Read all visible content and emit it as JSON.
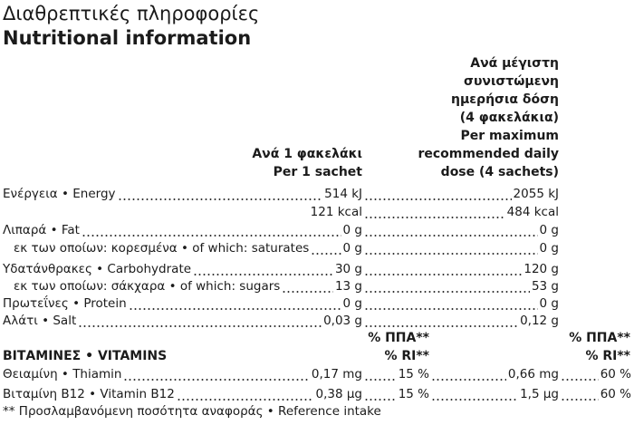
{
  "header": {
    "title_el": "Διαθρεπτικές πληροφορίες",
    "title_en": "Nutritional information"
  },
  "columns": {
    "per_sachet": [
      "Ανά 1 φακελάκι",
      "Per 1 sachet"
    ],
    "per_max": [
      "Ανά μέγιστη",
      "συνιστώμενη",
      "ημερήσια δόση",
      "(4 φακελάκια)",
      "Per maximum",
      "recommended daily",
      "dose (4 sachets)"
    ]
  },
  "rows": [
    {
      "label": "Ενέργεια • Energy",
      "per_sachet": "514 kJ",
      "per_max": "2055 kJ"
    },
    {
      "per_sachet": "121 kcal",
      "per_max": "484 kcal"
    },
    {
      "label": "Λιπαρά • Fat",
      "per_sachet": "0 g",
      "per_max": "0 g"
    },
    {
      "label": "εκ των οποίων: κορεσμένα • of which: saturates",
      "per_sachet": "0 g",
      "per_max": "0 g",
      "indent": true
    },
    {
      "label": "Υδατάνθρακες • Carbohydrate",
      "per_sachet": "30 g",
      "per_max": "120 g"
    },
    {
      "label": "εκ των οποίων: σάκχαρα • of which: sugars",
      "per_sachet": "13 g",
      "per_max": "53 g",
      "indent": true
    },
    {
      "label": "Πρωτεΐνες • Protein",
      "per_sachet": "0 g",
      "per_max": "0 g"
    },
    {
      "label": "Αλάτι • Salt",
      "per_sachet": "0,03 g",
      "per_max": "0,12 g"
    }
  ],
  "vitamins": {
    "title": "ΒΙΤΑΜΙΝΕΣ • VITAMINS",
    "ri_header": [
      "% ΠΠΑ**",
      "% RI**"
    ],
    "rows": [
      {
        "label": "Θειαμίνη • Thiamin",
        "per_sachet": "0,17 mg",
        "ri_sachet": "15 %",
        "per_max": "0,66 mg",
        "ri_max": "60 %"
      },
      {
        "label": "Βιταμίνη B12 • Vitamin B12",
        "per_sachet": "0,38 µg",
        "ri_sachet": "15 %",
        "per_max": "1,5 µg",
        "ri_max": "60 %"
      }
    ]
  },
  "footnote": "** Προσλαμβανόμενη ποσότητα αναφοράς • Reference intake"
}
